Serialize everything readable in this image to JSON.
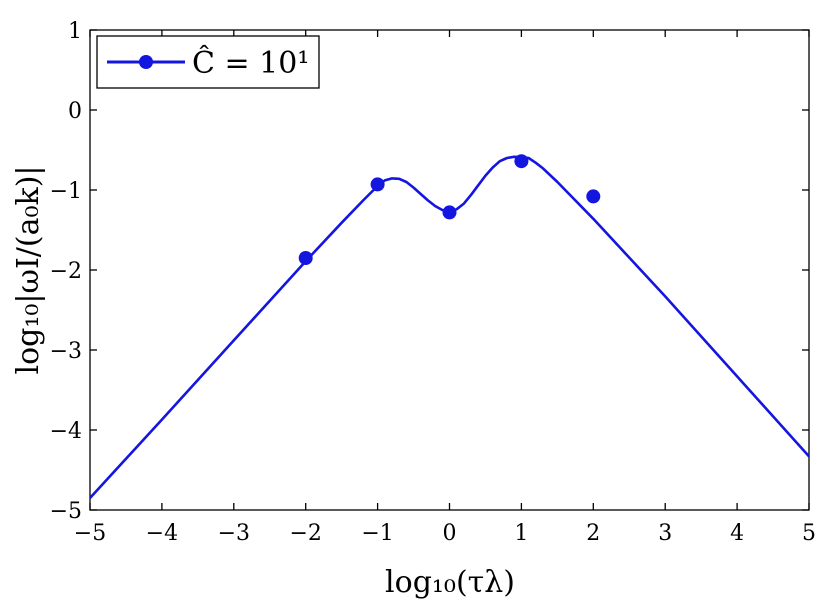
{
  "chart_data": {
    "type": "line",
    "xlabel": "log₁₀(τλ)",
    "ylabel": "log₁₀|ωI/(a₀k)|",
    "xlim": [
      -5,
      5
    ],
    "ylim": [
      -5,
      1
    ],
    "xticks": [
      -5,
      -4,
      -3,
      -2,
      -1,
      0,
      1,
      2,
      3,
      4,
      5
    ],
    "yticks": [
      1,
      0,
      -1,
      -2,
      -3,
      -4,
      -5
    ],
    "xtick_labels": [
      "−5",
      "−4",
      "−3",
      "−2",
      "−1",
      "0",
      "1",
      "2",
      "3",
      "4",
      "5"
    ],
    "ytick_labels": [
      "1",
      "0",
      "−1",
      "−2",
      "−3",
      "−4",
      "−5"
    ],
    "grid": false,
    "legend_position": "top-left",
    "color": "#1515e0",
    "series": [
      {
        "name": "Ĉ = 10¹",
        "line": {
          "x": [
            -5,
            -4,
            -3,
            -2,
            -1.5,
            -1.2,
            -1,
            -0.9,
            -0.8,
            -0.7,
            -0.6,
            -0.5,
            -0.4,
            -0.3,
            -0.2,
            -0.1,
            0,
            0.1,
            0.2,
            0.3,
            0.4,
            0.5,
            0.6,
            0.7,
            0.8,
            0.9,
            1.0,
            1.1,
            1.2,
            1.3,
            1.5,
            2,
            3,
            4,
            5
          ],
          "y": [
            -4.85,
            -3.87,
            -2.88,
            -1.89,
            -1.41,
            -1.13,
            -0.95,
            -0.88,
            -0.855,
            -0.86,
            -0.9,
            -0.97,
            -1.05,
            -1.13,
            -1.2,
            -1.25,
            -1.27,
            -1.24,
            -1.17,
            -1.06,
            -0.94,
            -0.82,
            -0.72,
            -0.64,
            -0.6,
            -0.585,
            -0.59,
            -0.6,
            -0.66,
            -0.73,
            -0.9,
            -1.36,
            -2.33,
            -3.33,
            -4.33
          ]
        },
        "points": {
          "x": [
            -2,
            -1,
            0,
            1,
            2
          ],
          "y": [
            -1.85,
            -0.93,
            -1.28,
            -0.64,
            -1.08
          ]
        }
      }
    ]
  }
}
